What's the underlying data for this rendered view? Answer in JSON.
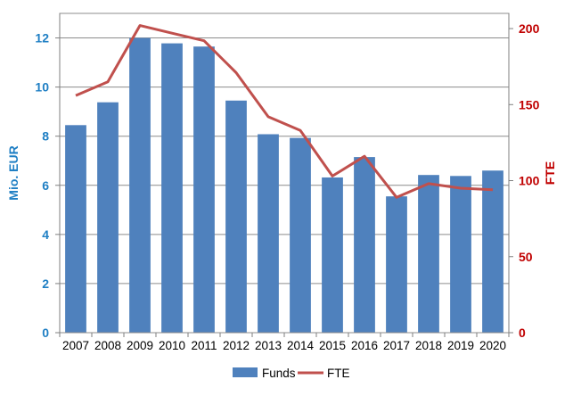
{
  "chart_data": {
    "type": "bar+line",
    "categories": [
      "2007",
      "2008",
      "2009",
      "2010",
      "2011",
      "2012",
      "2013",
      "2014",
      "2015",
      "2016",
      "2017",
      "2018",
      "2019",
      "2020"
    ],
    "series": [
      {
        "name": "Funds",
        "type": "bar",
        "axis": "left",
        "color": "#4F81BD",
        "values": [
          8.45,
          9.38,
          12.0,
          11.78,
          11.65,
          9.45,
          8.08,
          7.93,
          6.32,
          7.15,
          5.55,
          6.42,
          6.38,
          6.6
        ]
      },
      {
        "name": "FTE",
        "type": "line",
        "axis": "right",
        "color": "#C0504D",
        "values": [
          156,
          165,
          202,
          197,
          192,
          171,
          142,
          133,
          103,
          116,
          89,
          98,
          95,
          94
        ]
      }
    ],
    "ylabel_left": "Mio. EUR",
    "ylabel_right": "FTE",
    "ylim_left": [
      0,
      13
    ],
    "ylim_right": [
      0,
      210
    ],
    "yticks_left": [
      "0",
      "2",
      "4",
      "6",
      "8",
      "10",
      "12"
    ],
    "yticks_right": [
      "0",
      "50",
      "100",
      "150",
      "200"
    ],
    "left_axis_color": "#1F7FC4",
    "right_axis_color": "#C00000",
    "grid": true,
    "legend_position": "bottom"
  }
}
